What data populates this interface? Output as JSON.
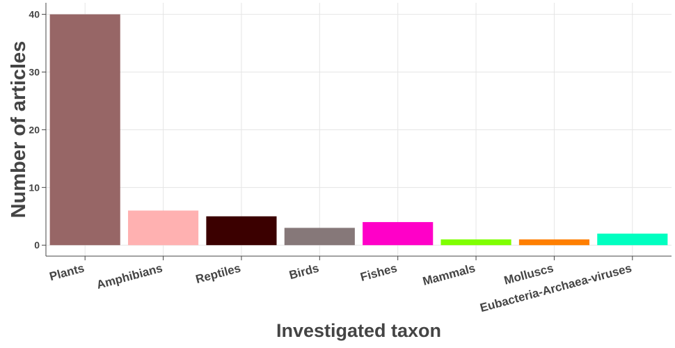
{
  "chart_data": {
    "type": "bar",
    "title": "",
    "xlabel": "Investigated taxon",
    "ylabel": "Number of articles",
    "categories": [
      "Plants",
      "Amphibians",
      "Reptiles",
      "Birds",
      "Fishes",
      "Mammals",
      "Molluscs",
      "Eubacteria-Archaea-viruses"
    ],
    "values": [
      40,
      6,
      5,
      3,
      4,
      1,
      1,
      2
    ],
    "colors": [
      "#976666",
      "#ffb1b1",
      "#3b0000",
      "#867879",
      "#ff00c8",
      "#7fff00",
      "#ff7f00",
      "#00ffc0"
    ],
    "yticks": [
      0,
      10,
      20,
      30,
      40
    ],
    "ylim": [
      -1.9,
      42
    ],
    "grid": true,
    "legend": "none"
  }
}
